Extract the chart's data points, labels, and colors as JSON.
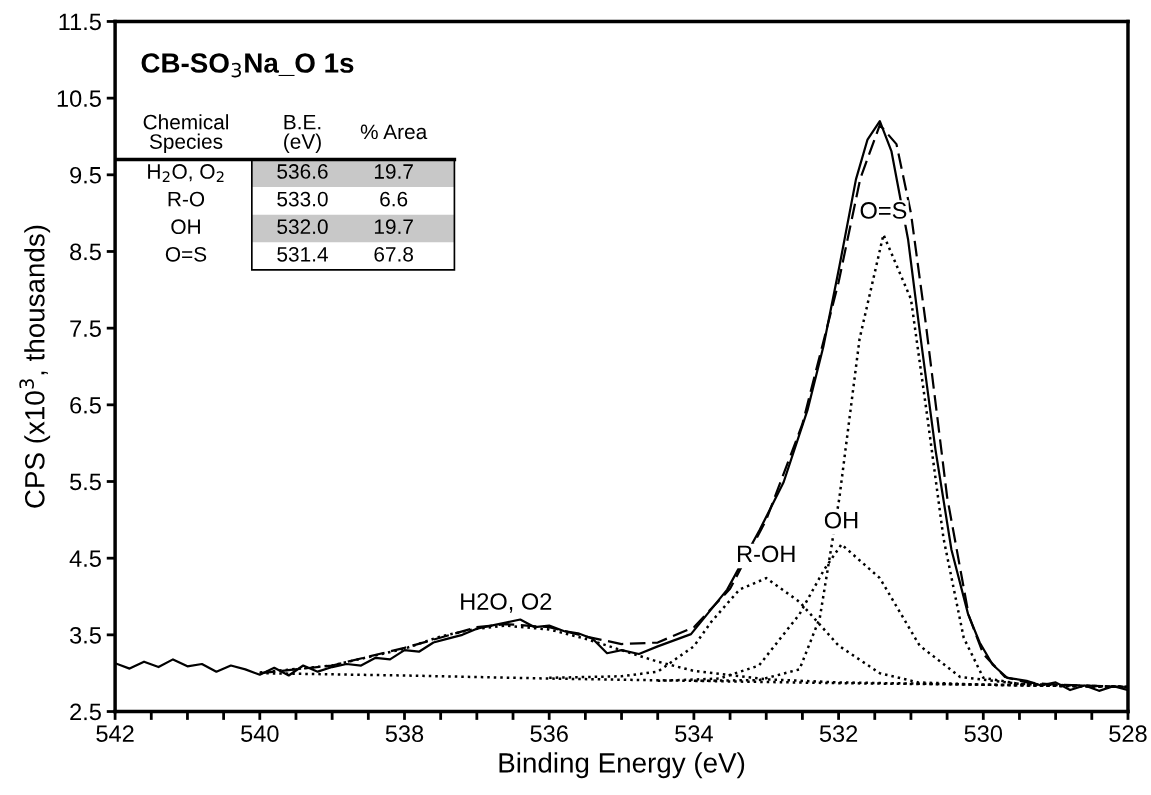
{
  "chart_data": {
    "type": "line",
    "title": "CB-SO$_{3}$Na_O 1s",
    "xlabel": "Binding Energy (eV)",
    "ylabel": "CPS (x10$^{3}$, thousands)",
    "xlim": [
      542,
      528
    ],
    "ylim": [
      2.5,
      11.5
    ],
    "xticks": [
      542,
      {
        "value": 541.5,
        "label": null
      },
      {
        "value": 541,
        "label": null
      },
      {
        "value": 540.5,
        "label": null
      },
      540,
      {
        "value": 539.5,
        "label": null
      },
      {
        "value": 539,
        "label": null
      },
      {
        "value": 538.5,
        "label": null
      },
      538,
      {
        "value": 537.5,
        "label": null
      },
      {
        "value": 537,
        "label": null
      },
      {
        "value": 536.5,
        "label": null
      },
      536,
      {
        "value": 535.5,
        "label": null
      },
      {
        "value": 535,
        "label": null
      },
      {
        "value": 534.5,
        "label": null
      },
      534,
      {
        "value": 533.5,
        "label": null
      },
      {
        "value": 533,
        "label": null
      },
      {
        "value": 532.5,
        "label": null
      },
      532,
      {
        "value": 531.5,
        "label": null
      },
      {
        "value": 531,
        "label": null
      },
      {
        "value": 530.5,
        "label": null
      },
      530,
      {
        "value": 529.5,
        "label": null
      },
      {
        "value": 529,
        "label": null
      },
      {
        "value": 528.5,
        "label": null
      },
      528
    ],
    "yticks": [
      2.5,
      3.5,
      4.5,
      5.5,
      6.5,
      7.5,
      8.5,
      9.5,
      10.5,
      11.5
    ],
    "grid": false,
    "legend": false,
    "marker": "none",
    "series": [
      {
        "color": "#000000",
        "line_style": "solid",
        "x": [
          542,
          541.8,
          541.6,
          541.4,
          541.2,
          541,
          540.8,
          540.6,
          540.4,
          540.2,
          540,
          539.8,
          539.6,
          539.4,
          539.2,
          539,
          538.8,
          538.6,
          538.4,
          538.2,
          538,
          537.8,
          537.6,
          537.4,
          537.2,
          537,
          536.8,
          536.6,
          536.4,
          536.2,
          536,
          535.8,
          535.6,
          535.4,
          535.2,
          535,
          534.76,
          534.5,
          534.04,
          533.54,
          533.09,
          532.76,
          532.43,
          532.21,
          531.99,
          531.76,
          531.6,
          531.43,
          531.27,
          531.04,
          530.88,
          530.66,
          530.44,
          530.21,
          530.05,
          529.87,
          529.67,
          529.4,
          529.2,
          529,
          528.8,
          528.6,
          528.4,
          528.2,
          528
        ],
        "values": [
          3.13,
          3.06,
          3.15,
          3.08,
          3.18,
          3.09,
          3.12,
          3.02,
          3.1,
          3.05,
          2.98,
          3.07,
          2.97,
          3.1,
          3.02,
          3.08,
          3.12,
          3.1,
          3.2,
          3.18,
          3.3,
          3.28,
          3.4,
          3.45,
          3.5,
          3.58,
          3.62,
          3.66,
          3.7,
          3.6,
          3.62,
          3.55,
          3.52,
          3.45,
          3.26,
          3.3,
          3.25,
          3.35,
          3.51,
          4.09,
          4.87,
          5.49,
          6.43,
          7.26,
          8.3,
          9.44,
          9.96,
          10.2,
          9.81,
          8.66,
          7.47,
          5.91,
          4.61,
          3.77,
          3.4,
          3.11,
          2.94,
          2.9,
          2.84,
          2.88,
          2.78,
          2.84,
          2.77,
          2.83,
          2.78
        ]
      },
      {
        "color": "#000000",
        "line_style": "dashed",
        "x": [
          540,
          539,
          538,
          537,
          536.6,
          536,
          535.5,
          535,
          534.5,
          534,
          533.5,
          533,
          532.5,
          532,
          531.7,
          531.43,
          531.2,
          531,
          530.8,
          530.5,
          530.2,
          530,
          529.7,
          529.4,
          529,
          528
        ],
        "values": [
          3.0,
          3.1,
          3.33,
          3.6,
          3.64,
          3.6,
          3.48,
          3.38,
          3.4,
          3.6,
          4.1,
          5.0,
          6.25,
          8.1,
          9.45,
          10.15,
          9.9,
          9.0,
          7.6,
          5.3,
          3.75,
          3.25,
          2.95,
          2.88,
          2.85,
          2.82
        ]
      },
      {
        "color": "#000000",
        "line_style": "dotted",
        "x": [
          540,
          538,
          536,
          534,
          532,
          530,
          528
        ],
        "values": [
          3.0,
          2.97,
          2.93,
          2.9,
          2.87,
          2.85,
          2.82
        ]
      },
      {
        "color": "#000000",
        "line_style": "dotted",
        "x": [
          540,
          539,
          538,
          537.5,
          537,
          536.6,
          536,
          535.5,
          535,
          534.5,
          534,
          533,
          532,
          530,
          528
        ],
        "values": [
          3.01,
          3.1,
          3.32,
          3.48,
          3.58,
          3.62,
          3.57,
          3.45,
          3.3,
          3.15,
          3.03,
          2.92,
          2.88,
          2.85,
          2.82
        ]
      },
      {
        "color": "#000000",
        "line_style": "dotted",
        "x": [
          536,
          535,
          534.5,
          534,
          533.76,
          533.37,
          533,
          532.54,
          532,
          531.43,
          530.9,
          530,
          528
        ],
        "values": [
          2.94,
          2.96,
          3.02,
          3.35,
          3.67,
          4.09,
          4.24,
          3.93,
          3.36,
          3.0,
          2.88,
          2.85,
          2.82
        ]
      },
      {
        "color": "#000000",
        "line_style": "dotted",
        "x": [
          534.5,
          533.65,
          533.1,
          532.54,
          532.2,
          531.96,
          531.43,
          530.88,
          530.32,
          529.5,
          528
        ],
        "values": [
          2.9,
          2.93,
          3.1,
          3.77,
          4.35,
          4.68,
          4.24,
          3.36,
          2.95,
          2.86,
          2.82
        ]
      },
      {
        "color": "#000000",
        "line_style": "dotted",
        "x": [
          534,
          533.1,
          532.54,
          532.26,
          531.99,
          531.71,
          531.38,
          531.0,
          530.77,
          530.55,
          530.27,
          530.0,
          529.5,
          528
        ],
        "values": [
          2.9,
          2.91,
          3.05,
          3.72,
          5.28,
          7.36,
          8.72,
          7.88,
          6.32,
          4.76,
          3.46,
          2.94,
          2.86,
          2.82
        ]
      }
    ],
    "annotations": [
      "Chemical\nSpecies",
      "B.E.\n(eV)",
      "% Area",
      "H$_{2}$O, O$_{2}$",
      "536.6",
      "19.7",
      "R-O",
      "533.0",
      "6.6",
      "OH",
      "532.0",
      "19.7",
      "O=S",
      "531.4",
      "67.8",
      {
        "text": "H2O, O2",
        "x": 536.6,
        "y": 3.62
      },
      {
        "text": "R-OH",
        "x": 533,
        "y": 4.24
      },
      {
        "text": "OH",
        "x": 531.96,
        "y": 4.68
      },
      {
        "text": "O=S",
        "x": 531.38,
        "y": 8.72
      }
    ]
  }
}
